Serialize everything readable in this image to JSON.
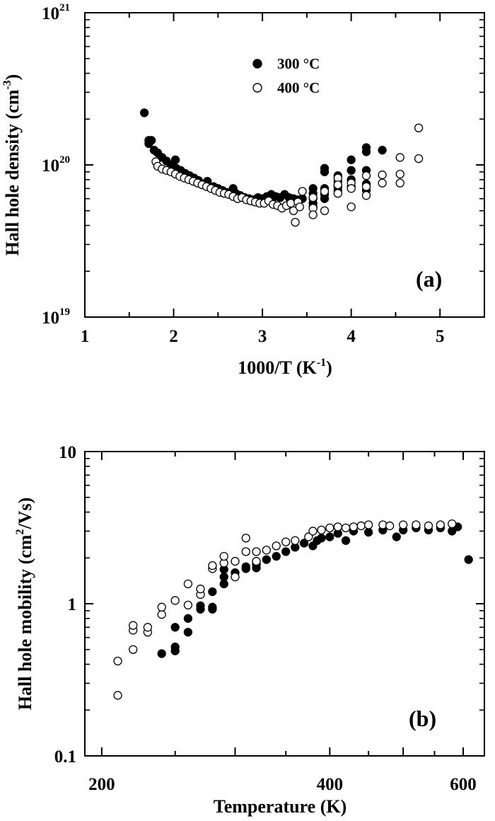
{
  "chart_data": [
    {
      "type": "scatter",
      "panel_label": "(a)",
      "xlabel_main": "1000/T (K",
      "xlabel_sup": "-1",
      "xlabel_end": ")",
      "ylabel_main": "Hall hole density (cm",
      "ylabel_sup": "-3",
      "ylabel_end": ")",
      "xlim": [
        1,
        5.5
      ],
      "ylim": [
        1e+19,
        1e+21
      ],
      "yscale": "log",
      "x_ticks": [
        {
          "value": 1,
          "label": "1"
        },
        {
          "value": 2,
          "label": "2"
        },
        {
          "value": 3,
          "label": "3"
        },
        {
          "value": 4,
          "label": "4"
        },
        {
          "value": 5,
          "label": "5"
        }
      ],
      "y_ticks": [
        {
          "value": 1e+19,
          "base": "10",
          "exp": "19"
        },
        {
          "value": 1e+20,
          "base": "10",
          "exp": "20"
        },
        {
          "value": 1e+21,
          "base": "10",
          "exp": "21"
        }
      ],
      "legend_position": "top-center",
      "series": [
        {
          "name": "300 °C",
          "marker": "filled-circle",
          "points": [
            [
              1.67,
              2.2e+20
            ],
            [
              1.72,
              1.45e+20
            ],
            [
              1.75,
              1.45e+20
            ],
            [
              1.72,
              1.38e+20
            ],
            [
              1.78,
              1.25e+20
            ],
            [
              1.82,
              1.2e+20
            ],
            [
              1.87,
              1.12e+20
            ],
            [
              1.92,
              1.06e+20
            ],
            [
              1.97,
              1e+20
            ],
            [
              2.02,
              1.08e+20
            ],
            [
              2.03,
              9.5e+19
            ],
            [
              2.08,
              9.2e+19
            ],
            [
              2.13,
              8.8e+19
            ],
            [
              2.18,
              8.5e+19
            ],
            [
              2.23,
              8.2e+19
            ],
            [
              2.28,
              7.9e+19
            ],
            [
              2.33,
              7.5e+19
            ],
            [
              2.38,
              7.8e+19
            ],
            [
              2.45,
              7.2e+19
            ],
            [
              2.5,
              7e+19
            ],
            [
              2.55,
              6.8e+19
            ],
            [
              2.6,
              6.6e+19
            ],
            [
              2.67,
              7e+19
            ],
            [
              2.7,
              6.5e+19
            ],
            [
              2.75,
              6.3e+19
            ],
            [
              2.8,
              6.1e+19
            ],
            [
              2.85,
              6e+19
            ],
            [
              2.9,
              5.9e+19
            ],
            [
              2.95,
              6.1e+19
            ],
            [
              3.0,
              6e+19
            ],
            [
              3.05,
              6.2e+19
            ],
            [
              3.1,
              6.4e+19
            ],
            [
              3.15,
              6.2e+19
            ],
            [
              3.2,
              6.1e+19
            ],
            [
              3.25,
              6.4e+19
            ],
            [
              3.3,
              6.1e+19
            ],
            [
              3.35,
              6e+19
            ],
            [
              3.4,
              5.9e+19
            ],
            [
              3.45,
              6e+19
            ],
            [
              3.57,
              7e+19
            ],
            [
              3.57,
              6.5e+19
            ],
            [
              3.57,
              6e+19
            ],
            [
              3.57,
              5.6e+19
            ],
            [
              3.57,
              5.3e+19
            ],
            [
              3.7,
              9.5e+19
            ],
            [
              3.7,
              9e+19
            ],
            [
              3.7,
              7e+19
            ],
            [
              3.7,
              6.4e+19
            ],
            [
              3.7,
              6e+19
            ],
            [
              3.85,
              8.5e+19
            ],
            [
              3.85,
              7.8e+19
            ],
            [
              3.85,
              7.2e+19
            ],
            [
              3.85,
              6.8e+19
            ],
            [
              4.0,
              1.08e+20
            ],
            [
              4.0,
              9.2e+19
            ],
            [
              4.0,
              8e+19
            ],
            [
              4.0,
              7.2e+19
            ],
            [
              4.17,
              1.3e+20
            ],
            [
              4.17,
              1.22e+20
            ],
            [
              4.17,
              9.2e+19
            ],
            [
              4.17,
              7.5e+19
            ],
            [
              4.17,
              6.8e+19
            ],
            [
              4.35,
              1.25e+20
            ]
          ]
        },
        {
          "name": "400 °C",
          "marker": "open-circle",
          "points": [
            [
              1.8,
              1.05e+20
            ],
            [
              1.82,
              9.8e+19
            ],
            [
              1.87,
              9.4e+19
            ],
            [
              1.92,
              9.2e+19
            ],
            [
              1.97,
              9e+19
            ],
            [
              2.02,
              8.7e+19
            ],
            [
              2.07,
              8.4e+19
            ],
            [
              2.12,
              8.2e+19
            ],
            [
              2.17,
              8e+19
            ],
            [
              2.22,
              7.8e+19
            ],
            [
              2.27,
              7.6e+19
            ],
            [
              2.32,
              7.4e+19
            ],
            [
              2.37,
              7.2e+19
            ],
            [
              2.42,
              7e+19
            ],
            [
              2.47,
              6.8e+19
            ],
            [
              2.52,
              6.6e+19
            ],
            [
              2.57,
              6.5e+19
            ],
            [
              2.62,
              6.4e+19
            ],
            [
              2.67,
              6.2e+19
            ],
            [
              2.72,
              6e+19
            ],
            [
              2.77,
              6.1e+19
            ],
            [
              2.82,
              5.9e+19
            ],
            [
              2.87,
              5.8e+19
            ],
            [
              2.92,
              5.7e+19
            ],
            [
              2.97,
              5.6e+19
            ],
            [
              3.02,
              5.6e+19
            ],
            [
              3.07,
              5.8e+19
            ],
            [
              3.12,
              5.5e+19
            ],
            [
              3.17,
              5.4e+19
            ],
            [
              3.22,
              5.2e+19
            ],
            [
              3.27,
              5.4e+19
            ],
            [
              3.32,
              5.6e+19
            ],
            [
              3.35,
              5e+19
            ],
            [
              3.37,
              4.2e+19
            ],
            [
              3.4,
              5.7e+19
            ],
            [
              3.42,
              5.3e+19
            ],
            [
              3.45,
              6.7e+19
            ],
            [
              3.57,
              6.1e+19
            ],
            [
              3.57,
              5.2e+19
            ],
            [
              3.57,
              4.7e+19
            ],
            [
              3.7,
              6.7e+19
            ],
            [
              3.7,
              5e+19
            ],
            [
              3.85,
              8.2e+19
            ],
            [
              3.85,
              7.4e+19
            ],
            [
              3.85,
              6.5e+19
            ],
            [
              4.0,
              7.6e+19
            ],
            [
              4.0,
              7e+19
            ],
            [
              4.0,
              5.3e+19
            ],
            [
              4.17,
              8.5e+19
            ],
            [
              4.17,
              7.2e+19
            ],
            [
              4.17,
              6.3e+19
            ],
            [
              4.35,
              8.6e+19
            ],
            [
              4.35,
              7.6e+19
            ],
            [
              4.55,
              8.7e+19
            ],
            [
              4.55,
              7.6e+19
            ],
            [
              4.55,
              1.12e+20
            ],
            [
              4.76,
              1.75e+20
            ],
            [
              4.76,
              1.1e+20
            ]
          ]
        }
      ]
    },
    {
      "type": "scatter",
      "panel_label": "(b)",
      "xlabel_main": "Temperature (K)",
      "ylabel_main": "Hall hole mobility (cm",
      "ylabel_sup": "2",
      "ylabel_end": "/Vs)",
      "xlim": [
        190,
        640
      ],
      "ylim": [
        0.1,
        10
      ],
      "xscale": "log",
      "yscale": "log",
      "x_ticks": [
        {
          "value": 200,
          "label": "200"
        },
        {
          "value": 400,
          "label": "400"
        },
        {
          "value": 600,
          "label": "600"
        }
      ],
      "y_ticks": [
        {
          "value": 0.1,
          "label": "0.1"
        },
        {
          "value": 1,
          "label": "1"
        },
        {
          "value": 10,
          "label": "10"
        }
      ],
      "series": [
        {
          "name": "300 °C",
          "marker": "filled-circle",
          "points": [
            [
              240,
              0.47
            ],
            [
              250,
              0.49
            ],
            [
              250,
              0.52
            ],
            [
              250,
              0.7
            ],
            [
              260,
              0.65
            ],
            [
              260,
              0.8
            ],
            [
              270,
              0.92
            ],
            [
              270,
              0.97
            ],
            [
              280,
              0.92
            ],
            [
              280,
              0.95
            ],
            [
              280,
              1.2
            ],
            [
              290,
              1.35
            ],
            [
              290,
              1.5
            ],
            [
              290,
              1.68
            ],
            [
              300,
              1.6
            ],
            [
              310,
              1.7
            ],
            [
              310,
              1.75
            ],
            [
              320,
              1.72
            ],
            [
              320,
              1.82
            ],
            [
              330,
              1.95
            ],
            [
              340,
              2.05
            ],
            [
              350,
              2.2
            ],
            [
              360,
              2.35
            ],
            [
              370,
              2.5
            ],
            [
              380,
              2.4
            ],
            [
              385,
              2.6
            ],
            [
              390,
              2.7
            ],
            [
              400,
              2.75
            ],
            [
              410,
              2.9
            ],
            [
              420,
              2.6
            ],
            [
              430,
              3.0
            ],
            [
              450,
              2.95
            ],
            [
              470,
              3.05
            ],
            [
              490,
              2.75
            ],
            [
              500,
              3.05
            ],
            [
              520,
              3.15
            ],
            [
              540,
              3.05
            ],
            [
              560,
              3.15
            ],
            [
              580,
              3.0
            ],
            [
              590,
              3.2
            ],
            [
              610,
              1.95
            ]
          ]
        },
        {
          "name": "400 °C",
          "marker": "open-circle",
          "points": [
            [
              210,
              0.25
            ],
            [
              210,
              0.42
            ],
            [
              220,
              0.5
            ],
            [
              220,
              0.67
            ],
            [
              220,
              0.72
            ],
            [
              230,
              0.65
            ],
            [
              230,
              0.7
            ],
            [
              240,
              0.85
            ],
            [
              240,
              0.95
            ],
            [
              250,
              1.05
            ],
            [
              260,
              0.98
            ],
            [
              260,
              1.35
            ],
            [
              270,
              1.15
            ],
            [
              270,
              1.25
            ],
            [
              280,
              1.7
            ],
            [
              280,
              1.78
            ],
            [
              290,
              1.85
            ],
            [
              290,
              2.05
            ],
            [
              300,
              1.5
            ],
            [
              300,
              1.9
            ],
            [
              310,
              2.2
            ],
            [
              310,
              2.7
            ],
            [
              320,
              1.9
            ],
            [
              320,
              2.2
            ],
            [
              330,
              2.25
            ],
            [
              340,
              2.4
            ],
            [
              350,
              2.55
            ],
            [
              360,
              2.6
            ],
            [
              375,
              2.75
            ],
            [
              380,
              3.0
            ],
            [
              390,
              3.05
            ],
            [
              400,
              3.15
            ],
            [
              410,
              3.2
            ],
            [
              420,
              3.15
            ],
            [
              430,
              3.2
            ],
            [
              440,
              3.25
            ],
            [
              450,
              3.3
            ],
            [
              470,
              3.3
            ],
            [
              480,
              3.25
            ],
            [
              500,
              3.3
            ],
            [
              520,
              3.3
            ],
            [
              540,
              3.25
            ],
            [
              560,
              3.3
            ],
            [
              580,
              3.35
            ]
          ]
        }
      ]
    }
  ]
}
